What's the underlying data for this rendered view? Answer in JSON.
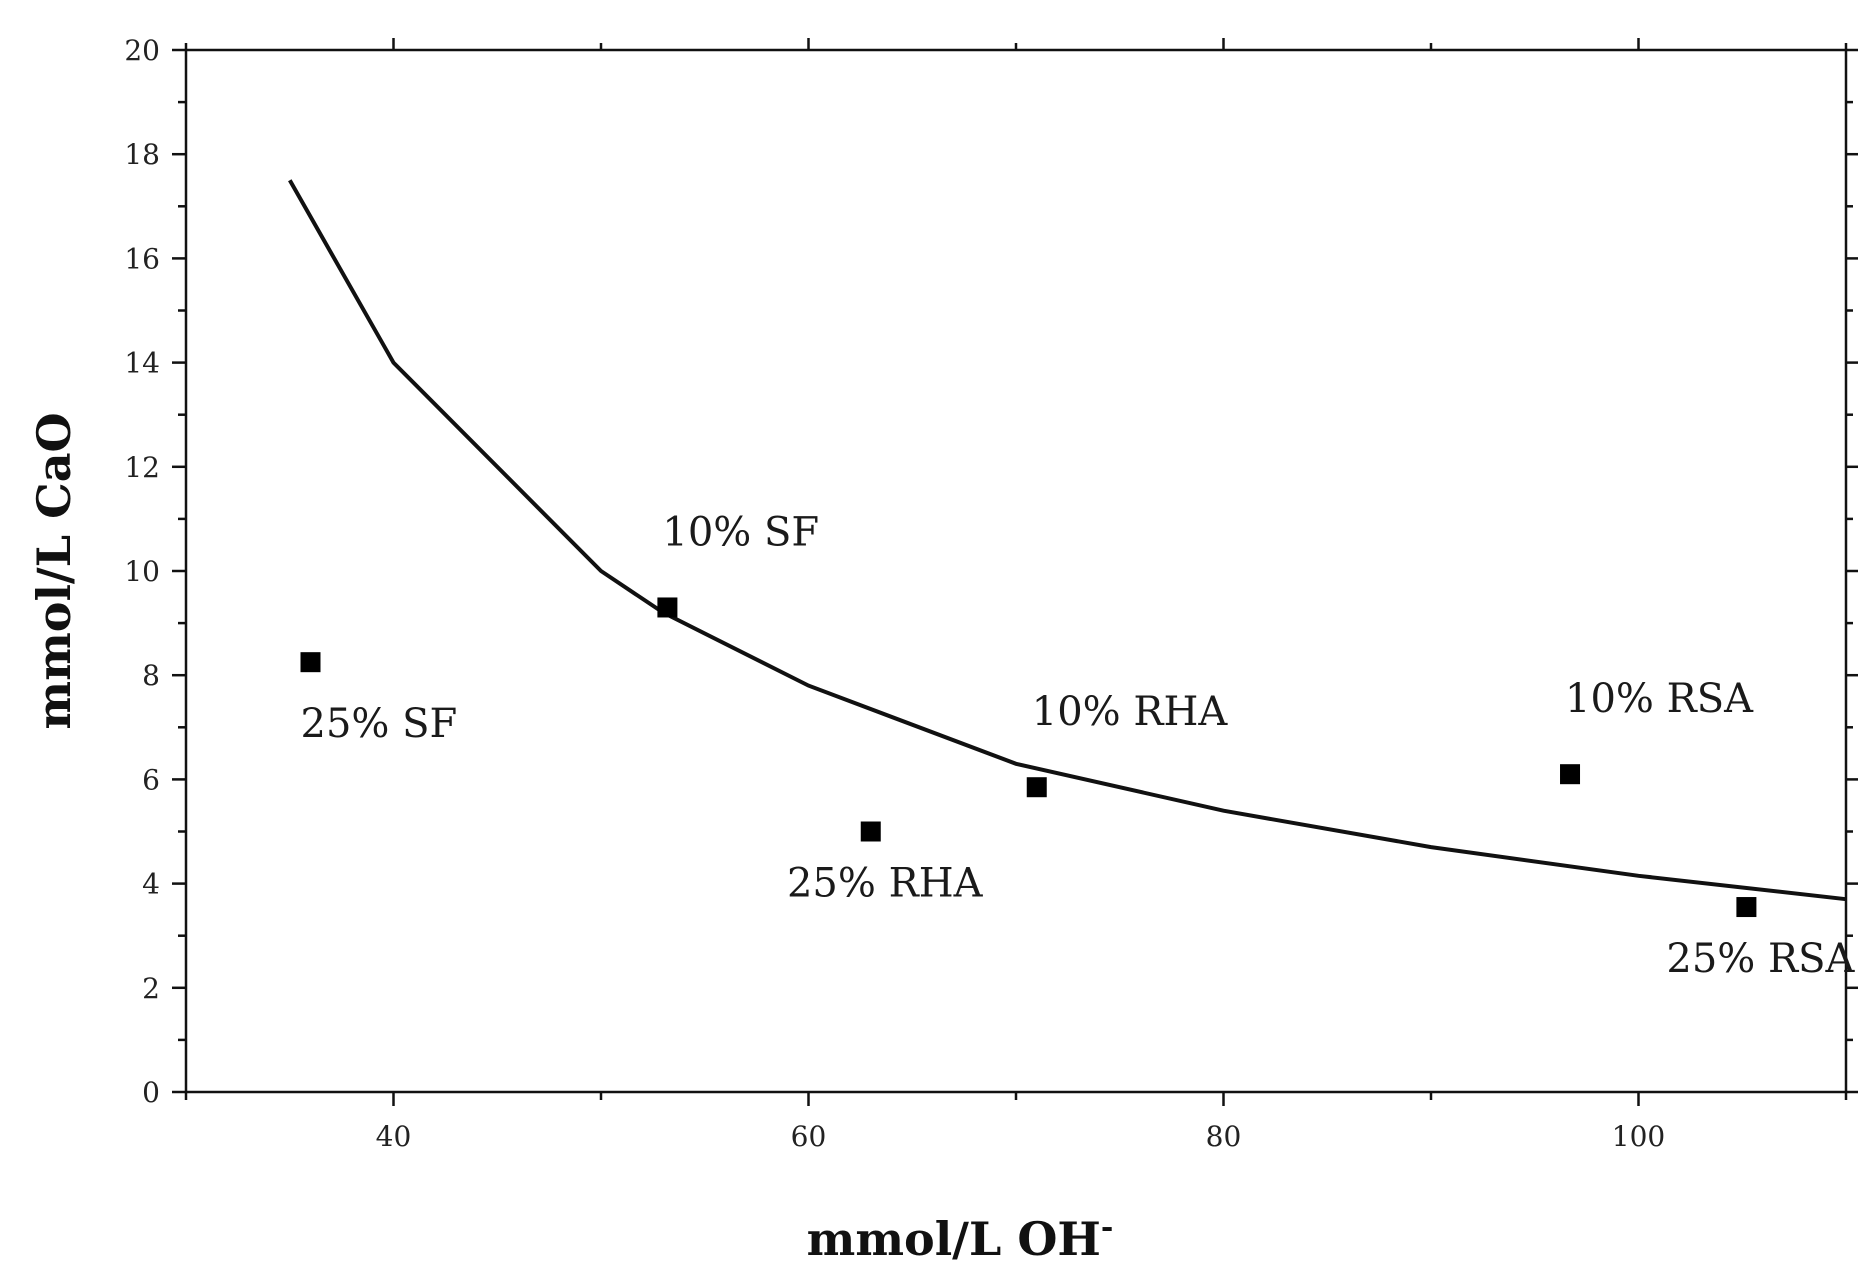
{
  "chart_data": {
    "type": "scatter",
    "title": "",
    "xlabel": "mmol/L OH",
    "xlabel_superscript": "-",
    "ylabel": "mmol/L CaO",
    "xlim": [
      30,
      110
    ],
    "ylim": [
      0,
      20
    ],
    "x_ticks": [
      40,
      60,
      80,
      100
    ],
    "x_minor_ticks": [
      30,
      50,
      70,
      90,
      110
    ],
    "y_ticks": [
      0,
      2,
      4,
      6,
      8,
      10,
      12,
      14,
      16,
      18,
      20
    ],
    "grid": false,
    "legend": "none",
    "series": [
      {
        "name": "solubility curve",
        "kind": "line",
        "color": "#000000",
        "x": [
          35,
          40,
          50,
          53,
          60,
          70,
          80,
          90,
          100,
          110
        ],
        "y": [
          17.5,
          14.0,
          10.0,
          9.2,
          7.8,
          6.3,
          5.4,
          4.7,
          4.15,
          3.7
        ]
      },
      {
        "name": "mixes",
        "kind": "scatter",
        "marker": "square",
        "color": "#000000",
        "points": [
          {
            "label": "25% SF",
            "x": 36.0,
            "y": 8.25,
            "label_position": "below-right"
          },
          {
            "label": "10% SF",
            "x": 53.2,
            "y": 9.3,
            "label_position": "above-right"
          },
          {
            "label": "25% RHA",
            "x": 63.0,
            "y": 5.0,
            "label_position": "below"
          },
          {
            "label": "10% RHA",
            "x": 71.0,
            "y": 5.85,
            "label_position": "above-right"
          },
          {
            "label": "10% RSA",
            "x": 96.7,
            "y": 6.1,
            "label_position": "above-right"
          },
          {
            "label": "25% RSA",
            "x": 105.2,
            "y": 3.55,
            "label_position": "below"
          }
        ]
      }
    ]
  }
}
